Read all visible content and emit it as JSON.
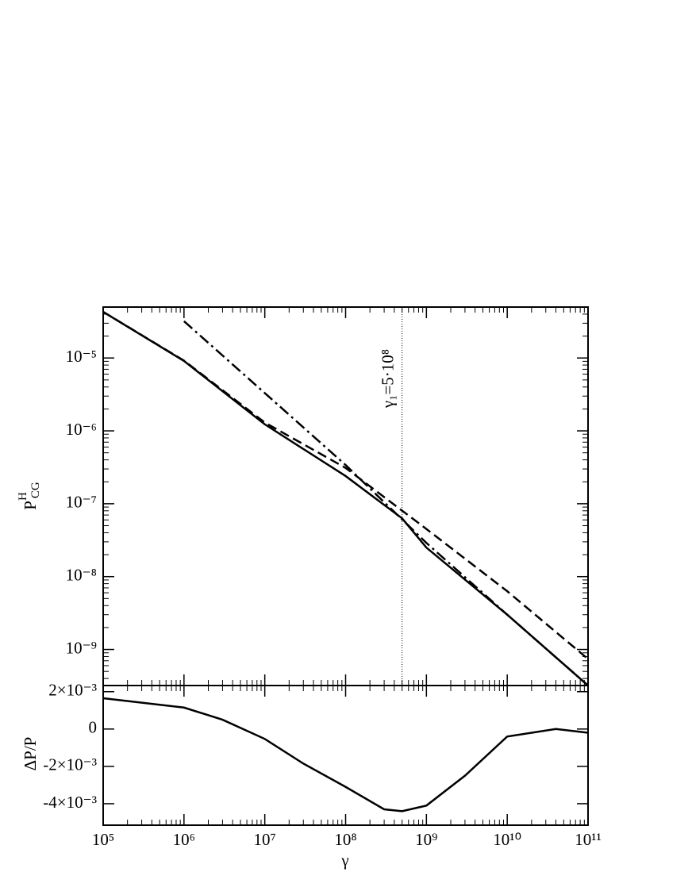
{
  "chart_data": [
    {
      "type": "line",
      "xlog": true,
      "ylog": true,
      "ylabel": {
        "base": "P",
        "sup": "H",
        "sub": "CG"
      },
      "xlim": [
        100000,
        100000000000
      ],
      "xticks": [
        100000,
        1000000,
        10000000,
        100000000,
        1000000000,
        10000000000,
        100000000000
      ],
      "ylim": [
        3.2e-10,
        5e-05
      ],
      "yticks": [
        {
          "value": 1e-05,
          "label": "10⁻⁵"
        },
        {
          "value": 1e-06,
          "label": "10⁻⁶"
        },
        {
          "value": 1e-07,
          "label": "10⁻⁷"
        },
        {
          "value": 1e-08,
          "label": "10⁻⁸"
        },
        {
          "value": 1e-09,
          "label": "10⁻⁹"
        }
      ],
      "series": [
        {
          "color": "#000000",
          "linestyle": "solid",
          "x": [
            100000,
            1000000,
            10000000,
            100000000,
            500000000,
            1000000000,
            10000000000,
            100000000000
          ],
          "values": [
            4.3e-05,
            9.1e-06,
            1.23e-06,
            2.4e-07,
            6.3e-08,
            2.5e-08,
            3e-09,
            3.2e-10
          ]
        },
        {
          "color": "#000000",
          "linestyle": "dashed",
          "x": [
            100000,
            1000000,
            10000000,
            100000000,
            1000000000,
            10000000000,
            100000000000
          ],
          "values": [
            4.3e-05,
            9.2e-06,
            1.3e-06,
            3.1e-07,
            4.5e-08,
            6.3e-09,
            7.4e-10
          ]
        },
        {
          "color": "#000000",
          "linestyle": "dashdot",
          "x": [
            1000000,
            10000000,
            100000000,
            1000000000,
            10000000000,
            100000000000
          ],
          "values": [
            3.2e-05,
            3.3e-06,
            3.4e-07,
            2.9e-08,
            3e-09,
            3.2e-10
          ]
        }
      ],
      "annotation": {
        "text": "γ₁=5·10⁸",
        "x": 500000000
      }
    },
    {
      "type": "line",
      "xlog": true,
      "ylog": false,
      "ylabel": "ΔP/P",
      "xlabel": "γ",
      "xlim": [
        100000,
        100000000000
      ],
      "xticks": [
        {
          "value": 100000,
          "label": "10⁵"
        },
        {
          "value": 1000000,
          "label": "10⁶"
        },
        {
          "value": 10000000,
          "label": "10⁷"
        },
        {
          "value": 100000000,
          "label": "10⁸"
        },
        {
          "value": 1000000000,
          "label": "10⁹"
        },
        {
          "value": 10000000000,
          "label": "10¹⁰"
        },
        {
          "value": 100000000000,
          "label": "10¹¹"
        }
      ],
      "ylim": [
        -0.00515,
        0.00233
      ],
      "yticks": [
        {
          "value": 0.002,
          "label": "2×10⁻³"
        },
        0,
        {
          "value": -0.002,
          "label": "-2×10⁻³"
        },
        {
          "value": -0.004,
          "label": "-4×10⁻³"
        }
      ],
      "series": [
        {
          "color": "#000000",
          "linestyle": "solid",
          "x": [
            100000,
            1000000,
            3000000,
            10000000,
            30000000,
            100000000,
            300000000,
            500000000,
            1000000000,
            3000000000,
            10000000000,
            40000000000,
            100000000000
          ],
          "values": [
            0.00165,
            0.00115,
            0.0005,
            -0.00053,
            -0.00185,
            -0.0031,
            -0.0043,
            -0.0044,
            -0.0041,
            -0.0025,
            -0.0004,
            0,
            -0.0002
          ]
        }
      ]
    }
  ]
}
